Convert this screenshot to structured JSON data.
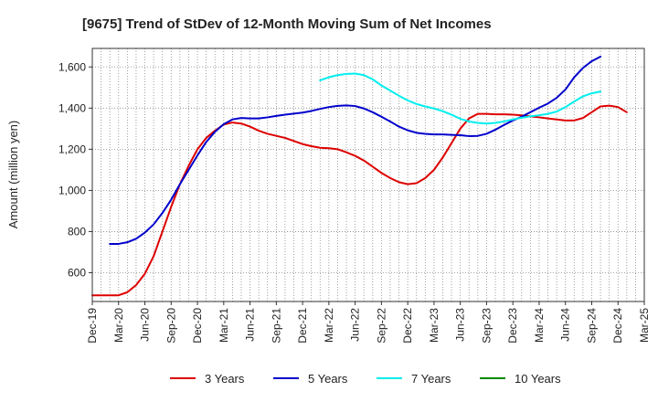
{
  "chart_data": {
    "type": "line",
    "title": "[9675]  Trend of StDev of 12-Month Moving Sum of Net Incomes",
    "xlabel": "",
    "ylabel": "Amount (million yen)",
    "x_tick_labels": [
      "Dec-19",
      "Mar-20",
      "Jun-20",
      "Sep-20",
      "Dec-20",
      "Mar-21",
      "Jun-21",
      "Sep-21",
      "Dec-21",
      "Mar-22",
      "Jun-22",
      "Sep-22",
      "Dec-22",
      "Mar-23",
      "Jun-23",
      "Sep-23",
      "Dec-23",
      "Mar-24",
      "Jun-24",
      "Sep-24",
      "Dec-24",
      "Mar-25"
    ],
    "y_ticks": [
      600,
      800,
      1000,
      1200,
      1400,
      1600
    ],
    "y_tick_labels": [
      "600",
      "800",
      "1,000",
      "1,200",
      "1,400",
      "1,600"
    ],
    "ylim": [
      460,
      1690
    ],
    "xlim_months": [
      0,
      63
    ],
    "grid": true,
    "legend_position": "bottom",
    "series": [
      {
        "name": "3 Years",
        "color": "#dd0000",
        "points": [
          [
            0,
            490
          ],
          [
            1,
            490
          ],
          [
            2,
            490
          ],
          [
            3,
            490
          ],
          [
            4,
            505
          ],
          [
            5,
            540
          ],
          [
            6,
            595
          ],
          [
            7,
            680
          ],
          [
            8,
            800
          ],
          [
            9,
            920
          ],
          [
            10,
            1030
          ],
          [
            11,
            1120
          ],
          [
            12,
            1200
          ],
          [
            13,
            1255
          ],
          [
            14,
            1290
          ],
          [
            15,
            1320
          ],
          [
            16,
            1330
          ],
          [
            17,
            1325
          ],
          [
            18,
            1310
          ],
          [
            19,
            1290
          ],
          [
            20,
            1275
          ],
          [
            21,
            1265
          ],
          [
            22,
            1255
          ],
          [
            23,
            1240
          ],
          [
            24,
            1225
          ],
          [
            25,
            1215
          ],
          [
            26,
            1207
          ],
          [
            27,
            1205
          ],
          [
            28,
            1200
          ],
          [
            29,
            1185
          ],
          [
            30,
            1168
          ],
          [
            31,
            1145
          ],
          [
            32,
            1115
          ],
          [
            33,
            1085
          ],
          [
            34,
            1060
          ],
          [
            35,
            1040
          ],
          [
            36,
            1030
          ],
          [
            37,
            1035
          ],
          [
            38,
            1060
          ],
          [
            39,
            1100
          ],
          [
            40,
            1160
          ],
          [
            41,
            1230
          ],
          [
            42,
            1300
          ],
          [
            43,
            1350
          ],
          [
            44,
            1372
          ],
          [
            45,
            1372
          ],
          [
            46,
            1370
          ],
          [
            47,
            1370
          ],
          [
            48,
            1368
          ],
          [
            49,
            1365
          ],
          [
            50,
            1360
          ],
          [
            51,
            1355
          ],
          [
            52,
            1350
          ],
          [
            53,
            1345
          ],
          [
            54,
            1340
          ],
          [
            55,
            1340
          ],
          [
            56,
            1352
          ],
          [
            57,
            1380
          ],
          [
            58,
            1408
          ],
          [
            59,
            1412
          ],
          [
            60,
            1405
          ],
          [
            61,
            1380
          ]
        ]
      },
      {
        "name": "5 Years",
        "color": "#0000cc",
        "points": [
          [
            2,
            740
          ],
          [
            3,
            740
          ],
          [
            4,
            748
          ],
          [
            5,
            765
          ],
          [
            6,
            795
          ],
          [
            7,
            835
          ],
          [
            8,
            890
          ],
          [
            9,
            955
          ],
          [
            10,
            1030
          ],
          [
            11,
            1100
          ],
          [
            12,
            1170
          ],
          [
            13,
            1235
          ],
          [
            14,
            1285
          ],
          [
            15,
            1322
          ],
          [
            16,
            1345
          ],
          [
            17,
            1352
          ],
          [
            18,
            1350
          ],
          [
            19,
            1350
          ],
          [
            20,
            1355
          ],
          [
            21,
            1362
          ],
          [
            22,
            1368
          ],
          [
            23,
            1373
          ],
          [
            24,
            1378
          ],
          [
            25,
            1386
          ],
          [
            26,
            1396
          ],
          [
            27,
            1405
          ],
          [
            28,
            1411
          ],
          [
            29,
            1413
          ],
          [
            30,
            1410
          ],
          [
            31,
            1398
          ],
          [
            32,
            1380
          ],
          [
            33,
            1358
          ],
          [
            34,
            1335
          ],
          [
            35,
            1310
          ],
          [
            36,
            1292
          ],
          [
            37,
            1280
          ],
          [
            38,
            1275
          ],
          [
            39,
            1272
          ],
          [
            40,
            1272
          ],
          [
            41,
            1270
          ],
          [
            42,
            1268
          ],
          [
            43,
            1264
          ],
          [
            44,
            1265
          ],
          [
            45,
            1275
          ],
          [
            46,
            1295
          ],
          [
            47,
            1318
          ],
          [
            48,
            1340
          ],
          [
            49,
            1358
          ],
          [
            50,
            1380
          ],
          [
            51,
            1402
          ],
          [
            52,
            1422
          ],
          [
            53,
            1450
          ],
          [
            54,
            1490
          ],
          [
            55,
            1550
          ],
          [
            56,
            1595
          ],
          [
            57,
            1628
          ],
          [
            58,
            1650
          ]
        ]
      },
      {
        "name": "7 Years",
        "color": "#00eeee",
        "points": [
          [
            26,
            1535
          ],
          [
            27,
            1550
          ],
          [
            28,
            1560
          ],
          [
            29,
            1566
          ],
          [
            30,
            1568
          ],
          [
            31,
            1560
          ],
          [
            32,
            1540
          ],
          [
            33,
            1510
          ],
          [
            34,
            1485
          ],
          [
            35,
            1460
          ],
          [
            36,
            1437
          ],
          [
            37,
            1420
          ],
          [
            38,
            1408
          ],
          [
            39,
            1398
          ],
          [
            40,
            1385
          ],
          [
            41,
            1368
          ],
          [
            42,
            1348
          ],
          [
            43,
            1335
          ],
          [
            44,
            1328
          ],
          [
            45,
            1325
          ],
          [
            46,
            1328
          ],
          [
            47,
            1335
          ],
          [
            48,
            1345
          ],
          [
            49,
            1353
          ],
          [
            50,
            1360
          ],
          [
            51,
            1365
          ],
          [
            52,
            1372
          ],
          [
            53,
            1383
          ],
          [
            54,
            1405
          ],
          [
            55,
            1432
          ],
          [
            56,
            1457
          ],
          [
            57,
            1472
          ],
          [
            58,
            1480
          ]
        ]
      },
      {
        "name": "10 Years",
        "color": "#008800",
        "points": []
      }
    ]
  }
}
